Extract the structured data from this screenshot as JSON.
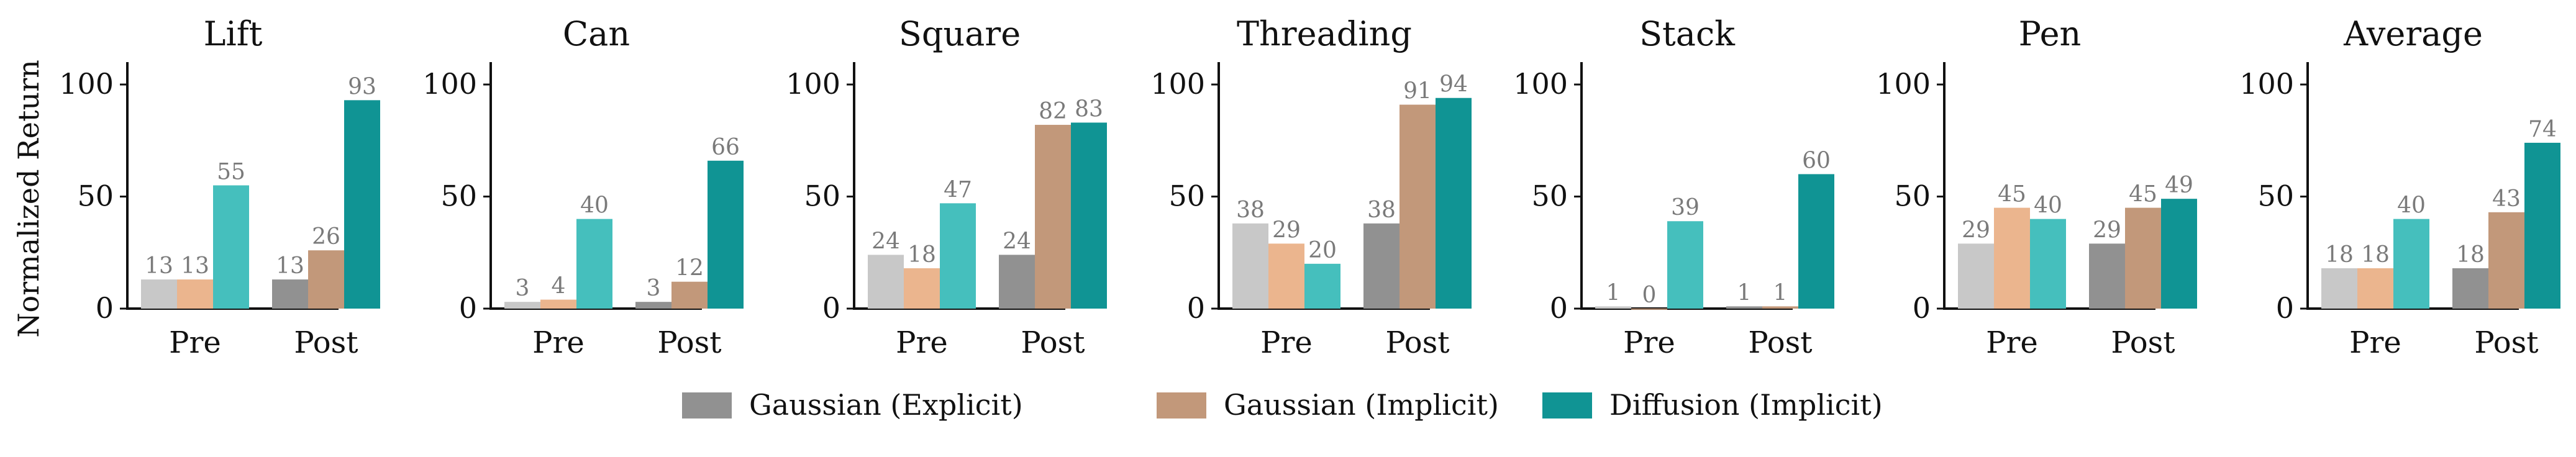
{
  "chart_data": {
    "type": "bar",
    "ylabel": "Normalized Return",
    "ylim": [
      0,
      110
    ],
    "yticks": [
      0,
      50,
      100
    ],
    "categories": [
      "Pre",
      "Post"
    ],
    "legend": [
      {
        "name": "Gaussian (Explicit)",
        "color": "#919191"
      },
      {
        "name": "Gaussian (Implicit)",
        "color": "#c2987a"
      },
      {
        "name": "Diffusion (Implicit)",
        "color": "#109494"
      }
    ],
    "pre_colors": [
      "#c8c8c8",
      "#ebb58e",
      "#45bfbd"
    ],
    "post_colors": [
      "#919191",
      "#c2987a",
      "#109494"
    ],
    "panels": [
      {
        "title": "Lift",
        "pre": [
          13,
          13,
          55
        ],
        "post": [
          13,
          26,
          93
        ]
      },
      {
        "title": "Can",
        "pre": [
          3,
          4,
          40
        ],
        "post": [
          3,
          12,
          66
        ]
      },
      {
        "title": "Square",
        "pre": [
          24,
          18,
          47
        ],
        "post": [
          24,
          82,
          83
        ]
      },
      {
        "title": "Threading",
        "pre": [
          38,
          29,
          20
        ],
        "post": [
          38,
          91,
          94
        ]
      },
      {
        "title": "Stack",
        "pre": [
          1,
          0,
          39
        ],
        "post": [
          1,
          1,
          60
        ]
      },
      {
        "title": "Pen",
        "pre": [
          29,
          45,
          40
        ],
        "post": [
          29,
          45,
          49
        ]
      },
      {
        "title": "Average",
        "pre": [
          18,
          18,
          40
        ],
        "post": [
          18,
          43,
          74
        ]
      }
    ]
  }
}
